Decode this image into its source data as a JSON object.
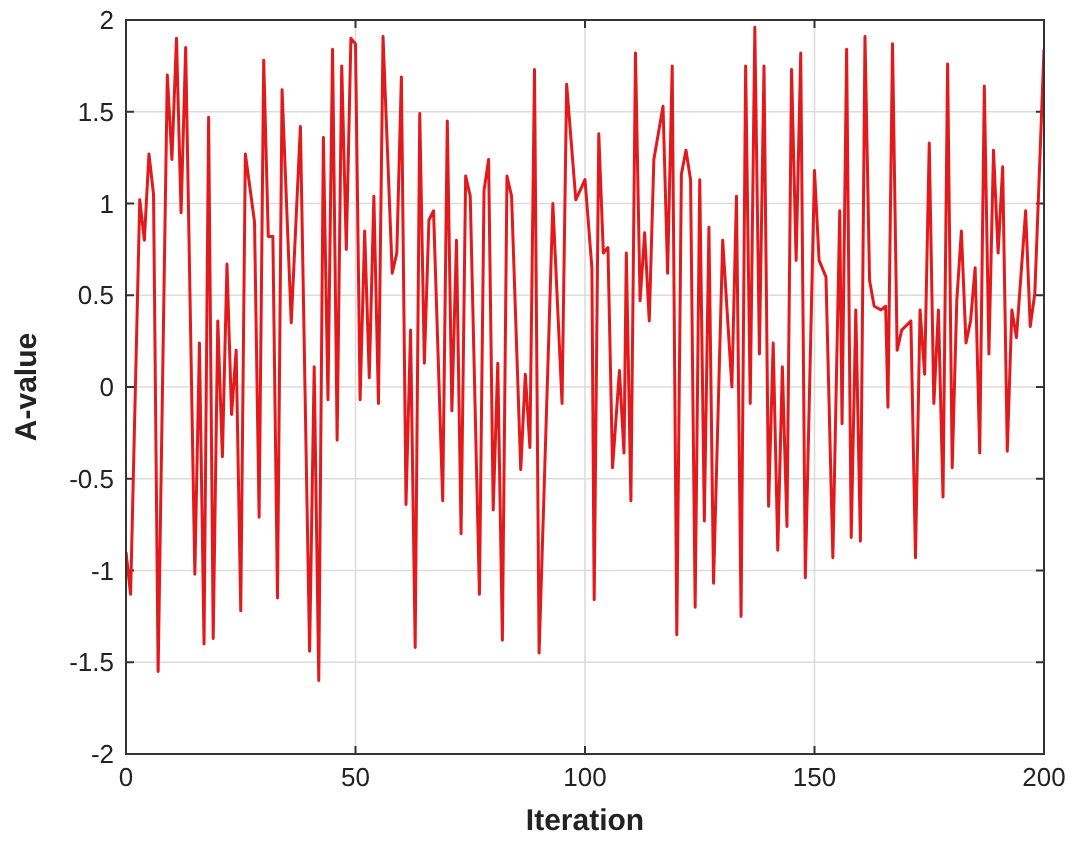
{
  "chart_data": {
    "type": "line",
    "xlabel": "Iteration",
    "ylabel": "A-value",
    "xlim": [
      0,
      200
    ],
    "ylim": [
      -2,
      2
    ],
    "xticks": [
      0,
      50,
      100,
      150,
      200
    ],
    "yticks": [
      -2,
      -1.5,
      -1,
      -0.5,
      0,
      0.5,
      1,
      1.5,
      2
    ],
    "grid": true,
    "line_style": "solid",
    "marker": "none",
    "series": [
      {
        "color": "#e31a1c",
        "x": [
          0,
          1,
          3,
          4,
          5,
          6,
          7,
          9,
          10,
          11,
          12,
          13,
          15,
          16,
          17,
          18,
          19,
          20,
          21,
          22,
          23,
          24,
          25,
          26,
          28,
          29,
          30,
          31,
          32,
          33,
          34,
          36,
          38,
          40,
          41,
          42,
          43,
          44,
          45,
          46,
          47,
          48,
          49,
          50,
          51,
          52,
          53,
          54,
          55,
          56,
          58,
          59,
          60,
          61,
          62,
          63,
          64,
          65,
          66,
          67,
          69,
          70,
          71,
          72,
          73,
          74,
          75,
          77,
          78,
          79,
          80,
          81,
          82,
          83,
          84,
          86,
          87,
          88,
          89,
          90,
          93,
          95,
          96,
          98,
          100,
          101.5,
          102,
          103,
          104,
          105,
          106,
          107.5,
          108.5,
          109,
          110,
          111,
          112,
          113,
          114,
          115,
          117,
          118,
          119,
          120,
          121,
          122,
          123,
          124,
          125,
          126,
          127,
          128,
          130,
          132,
          133,
          134,
          135,
          136,
          137,
          138,
          139,
          140,
          141,
          142,
          143,
          144,
          145,
          146,
          147,
          148,
          150,
          151,
          152.5,
          154,
          155.5,
          156,
          157,
          158,
          159,
          160,
          161,
          162,
          163,
          164.5,
          165.5,
          166,
          167,
          168,
          169,
          171,
          172,
          173,
          174,
          175,
          176,
          177,
          178,
          179,
          180,
          181,
          182,
          183,
          184,
          185,
          186,
          187,
          188,
          189,
          190,
          191,
          192,
          193,
          194,
          196,
          197,
          198,
          200
        ],
        "values": [
          -0.9,
          -1.13,
          1.02,
          0.8,
          1.27,
          1.05,
          -1.55,
          1.7,
          1.24,
          1.9,
          0.95,
          1.85,
          -1.02,
          0.24,
          -1.4,
          1.47,
          -1.37,
          0.36,
          -0.38,
          0.67,
          -0.15,
          0.2,
          -1.22,
          1.27,
          0.9,
          -0.71,
          1.78,
          0.82,
          0.82,
          -1.15,
          1.62,
          0.35,
          1.42,
          -1.44,
          0.11,
          -1.6,
          1.36,
          -0.07,
          1.84,
          -0.29,
          1.75,
          0.75,
          1.9,
          1.87,
          -0.07,
          0.85,
          0.05,
          1.04,
          -0.09,
          1.91,
          0.62,
          0.73,
          1.69,
          -0.64,
          0.31,
          -1.42,
          1.49,
          0.13,
          0.91,
          0.96,
          -0.62,
          1.45,
          -0.13,
          0.8,
          -0.8,
          1.15,
          1.04,
          -1.13,
          1.07,
          1.24,
          -0.67,
          0.13,
          -1.38,
          1.15,
          1.04,
          -0.45,
          0.07,
          -0.33,
          1.73,
          -1.45,
          1.0,
          -0.09,
          1.65,
          1.02,
          1.13,
          0.65,
          -1.16,
          1.38,
          0.73,
          0.76,
          -0.44,
          0.09,
          -0.36,
          0.73,
          -0.62,
          1.82,
          0.47,
          0.84,
          0.36,
          1.24,
          1.53,
          0.62,
          1.75,
          -1.35,
          1.16,
          1.29,
          1.13,
          -1.2,
          1.13,
          -0.73,
          0.87,
          -1.07,
          0.8,
          0,
          1.04,
          -1.25,
          1.75,
          -0.09,
          1.96,
          0.18,
          1.75,
          -0.65,
          0.24,
          -0.89,
          0.11,
          -0.76,
          1.73,
          0.69,
          1.82,
          -1.04,
          1.18,
          0.69,
          0.6,
          -0.93,
          0.96,
          -0.2,
          1.84,
          -0.82,
          0.42,
          -0.84,
          1.91,
          0.58,
          0.44,
          0.42,
          0.44,
          -0.11,
          1.87,
          0.2,
          0.31,
          0.36,
          -0.93,
          0.42,
          0.07,
          1.33,
          -0.09,
          0.42,
          -0.6,
          1.76,
          -0.44,
          0.47,
          0.85,
          0.24,
          0.36,
          0.65,
          -0.36,
          1.64,
          0.18,
          1.29,
          0.73,
          1.2,
          -0.35,
          0.42,
          0.27,
          0.96,
          0.33,
          0.51,
          1.84
        ]
      }
    ]
  }
}
